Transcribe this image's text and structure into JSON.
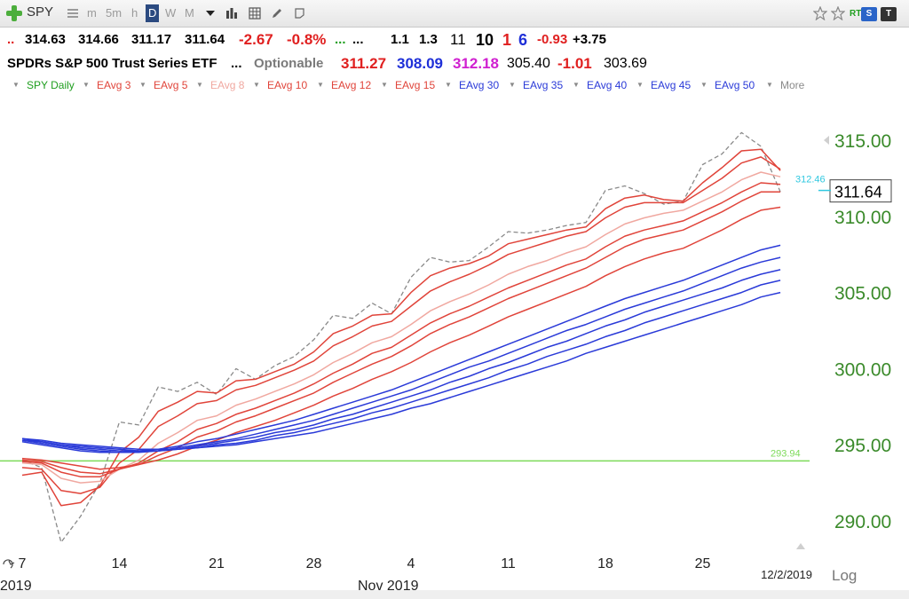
{
  "toolbar": {
    "symbol": "SPY",
    "intervals": [
      "m",
      "5m",
      "h",
      "D",
      "W",
      "M"
    ],
    "active_interval": "D",
    "icons": [
      "add-symbol-icon",
      "list-icon",
      "dropdown-icon",
      "bar-chart-icon",
      "grid-icon",
      "pen-icon",
      "note-icon",
      "star-icon",
      "star-outline-icon",
      "rt-badge-icon",
      "s-badge-icon",
      "t-badge-icon"
    ],
    "rt_label": "RT",
    "s_label": "S",
    "t_label": "T"
  },
  "quote": {
    "dots1": "..",
    "open": "314.63",
    "high": "314.66",
    "low": "311.17",
    "close": "311.64",
    "change": "-2.67",
    "change_pct": "-0.8%",
    "dots_green": "...",
    "dots_black": "...",
    "v1": "1.1",
    "v2": "1.3",
    "v3": "11",
    "v4": "10",
    "v5": "1",
    "v6": "6",
    "v7": "-0.93",
    "v8": "+3.75"
  },
  "quote2": {
    "name": "SPDRs S&P 500 Trust Series ETF",
    "dots": "...",
    "optionable": "Optionable",
    "p1": "311.27",
    "p2": "308.09",
    "p3": "312.18",
    "p4": "305.40",
    "p5": "-1.01",
    "p6": "303.69"
  },
  "legend": {
    "items": [
      "SPY Daily",
      "EAvg 3",
      "EAvg 5",
      "EAvg 8",
      "EAvg 10",
      "EAvg 12",
      "EAvg 15",
      "EAvg 30",
      "EAvg 35",
      "EAvg 40",
      "EAvg 45",
      "EAvg 50"
    ],
    "more": "More"
  },
  "colors": {
    "price": "#8a8a8a",
    "short_ema": "#e0443a",
    "ema8": "#f0a8a0",
    "long_ema": "#2a3ad8",
    "hline": "#7ddb5a",
    "axis_text": "#3a8a2a",
    "marker": "#30c8e0"
  },
  "chart_data": {
    "type": "line",
    "ylim": [
      288,
      316
    ],
    "yticks": [
      "290.00",
      "295.00",
      "300.00",
      "305.00",
      "310.00",
      "315.00"
    ],
    "x_ticks": [
      "7",
      "14",
      "21",
      "28",
      "4",
      "11",
      "18",
      "25"
    ],
    "x_tick_index": [
      0,
      5,
      10,
      15,
      20,
      25,
      30,
      35
    ],
    "month_labels": [
      "2019",
      "Nov 2019"
    ],
    "date_label": "12/2/2019",
    "scale_label": "Log",
    "last_price_label": "311.64",
    "marker_label": "312.46",
    "marker_value": 312.46,
    "hline_value": 293.94,
    "hline_label": "293.94",
    "series": [
      {
        "name": "SPY Daily",
        "style": "price",
        "values": [
          294.0,
          293.5,
          288.6,
          290.3,
          292.5,
          296.5,
          296.3,
          298.8,
          298.5,
          299.1,
          298.3,
          300.0,
          299.3,
          300.2,
          300.8,
          301.9,
          303.5,
          303.3,
          304.3,
          303.6,
          306.0,
          307.3,
          307.0,
          307.1,
          308.0,
          309.0,
          308.9,
          309.1,
          309.4,
          309.6,
          311.7,
          312.0,
          311.5,
          310.8,
          311.0,
          313.4,
          314.1,
          315.5,
          314.6,
          311.6
        ]
      },
      {
        "name": "EAvg 3",
        "style": "short",
        "values": [
          293.0,
          293.2,
          291.0,
          291.2,
          292.3,
          294.5,
          295.5,
          297.2,
          297.8,
          298.5,
          298.4,
          299.2,
          299.3,
          299.8,
          300.3,
          301.1,
          302.3,
          302.8,
          303.5,
          303.6,
          305.0,
          306.1,
          306.6,
          306.9,
          307.4,
          308.2,
          308.5,
          308.8,
          309.1,
          309.3,
          310.5,
          311.2,
          311.4,
          311.1,
          311.0,
          312.2,
          313.2,
          314.3,
          314.4,
          313.0
        ]
      },
      {
        "name": "EAvg 5",
        "style": "short",
        "values": [
          293.5,
          293.4,
          292.0,
          291.8,
          292.2,
          293.8,
          294.7,
          296.2,
          296.9,
          297.7,
          297.9,
          298.6,
          298.9,
          299.4,
          299.9,
          300.5,
          301.5,
          302.1,
          302.8,
          303.1,
          304.1,
          305.1,
          305.7,
          306.2,
          306.8,
          307.5,
          307.9,
          308.3,
          308.7,
          309.0,
          309.9,
          310.6,
          310.9,
          310.9,
          310.9,
          311.7,
          312.5,
          313.5,
          313.9,
          313.1
        ]
      },
      {
        "name": "EAvg 8",
        "style": "ema8",
        "values": [
          293.8,
          293.7,
          292.8,
          292.5,
          292.6,
          293.4,
          294.0,
          295.1,
          295.8,
          296.6,
          296.9,
          297.6,
          298.0,
          298.5,
          299.0,
          299.6,
          300.4,
          301.0,
          301.7,
          302.1,
          302.9,
          303.8,
          304.4,
          304.9,
          305.5,
          306.2,
          306.7,
          307.1,
          307.6,
          308.0,
          308.8,
          309.5,
          309.9,
          310.2,
          310.4,
          311.0,
          311.6,
          312.4,
          312.9,
          312.6
        ]
      },
      {
        "name": "EAvg 10",
        "style": "short",
        "values": [
          293.9,
          293.8,
          293.2,
          292.9,
          292.9,
          293.4,
          293.8,
          294.6,
          295.2,
          296.0,
          296.4,
          297.0,
          297.4,
          297.9,
          298.4,
          299.0,
          299.7,
          300.3,
          301.0,
          301.4,
          302.2,
          303.0,
          303.6,
          304.1,
          304.7,
          305.3,
          305.8,
          306.3,
          306.8,
          307.2,
          308.0,
          308.7,
          309.1,
          309.4,
          309.7,
          310.3,
          310.9,
          311.6,
          312.2,
          312.1
        ]
      },
      {
        "name": "EAvg 12",
        "style": "short",
        "values": [
          294.0,
          293.9,
          293.5,
          293.2,
          293.1,
          293.4,
          293.7,
          294.3,
          294.8,
          295.5,
          295.9,
          296.5,
          296.9,
          297.4,
          297.9,
          298.4,
          299.1,
          299.7,
          300.3,
          300.8,
          301.5,
          302.3,
          302.9,
          303.4,
          304.0,
          304.6,
          305.1,
          305.6,
          306.1,
          306.6,
          307.3,
          308.0,
          308.5,
          308.8,
          309.1,
          309.7,
          310.3,
          311.0,
          311.6,
          311.6
        ]
      },
      {
        "name": "EAvg 15",
        "style": "short",
        "values": [
          294.1,
          294.0,
          293.8,
          293.6,
          293.4,
          293.5,
          293.7,
          294.0,
          294.4,
          294.9,
          295.3,
          295.8,
          296.2,
          296.6,
          297.1,
          297.6,
          298.2,
          298.7,
          299.3,
          299.8,
          300.4,
          301.1,
          301.7,
          302.2,
          302.8,
          303.4,
          303.9,
          304.4,
          304.9,
          305.4,
          306.1,
          306.7,
          307.2,
          307.6,
          307.9,
          308.5,
          309.1,
          309.8,
          310.4,
          310.6
        ]
      },
      {
        "name": "EAvg 30",
        "style": "long",
        "values": [
          295.2,
          295.0,
          294.8,
          294.6,
          294.5,
          294.5,
          294.6,
          294.7,
          294.9,
          295.2,
          295.4,
          295.7,
          296.0,
          296.3,
          296.6,
          297.0,
          297.4,
          297.8,
          298.2,
          298.6,
          299.1,
          299.6,
          300.1,
          300.6,
          301.1,
          301.6,
          302.1,
          302.6,
          303.1,
          303.6,
          304.1,
          304.6,
          305.0,
          305.4,
          305.8,
          306.3,
          306.8,
          307.3,
          307.8,
          308.1
        ]
      },
      {
        "name": "EAvg 35",
        "style": "long",
        "values": [
          295.3,
          295.1,
          294.9,
          294.7,
          294.6,
          294.5,
          294.5,
          294.6,
          294.8,
          295.0,
          295.2,
          295.4,
          295.7,
          296.0,
          296.3,
          296.6,
          297.0,
          297.4,
          297.8,
          298.2,
          298.6,
          299.1,
          299.6,
          300.1,
          300.5,
          301.0,
          301.5,
          302.0,
          302.5,
          302.9,
          303.4,
          303.9,
          304.3,
          304.7,
          305.1,
          305.6,
          306.1,
          306.6,
          307.0,
          307.3
        ]
      },
      {
        "name": "EAvg 40",
        "style": "long",
        "values": [
          295.3,
          295.2,
          295.0,
          294.8,
          294.7,
          294.6,
          294.6,
          294.6,
          294.7,
          294.9,
          295.1,
          295.3,
          295.5,
          295.8,
          296.0,
          296.3,
          296.7,
          297.0,
          297.4,
          297.8,
          298.2,
          298.6,
          299.1,
          299.5,
          300.0,
          300.4,
          300.9,
          301.4,
          301.8,
          302.3,
          302.8,
          303.2,
          303.7,
          304.1,
          304.5,
          304.9,
          305.3,
          305.8,
          306.2,
          306.5
        ]
      },
      {
        "name": "EAvg 45",
        "style": "long",
        "values": [
          295.4,
          295.2,
          295.0,
          294.9,
          294.8,
          294.7,
          294.6,
          294.6,
          294.7,
          294.8,
          295.0,
          295.1,
          295.3,
          295.6,
          295.8,
          296.1,
          296.4,
          296.7,
          297.1,
          297.4,
          297.8,
          298.2,
          298.6,
          299.0,
          299.4,
          299.9,
          300.3,
          300.8,
          301.2,
          301.6,
          302.1,
          302.5,
          303.0,
          303.4,
          303.8,
          304.2,
          304.6,
          305.0,
          305.5,
          305.8
        ]
      },
      {
        "name": "EAvg 50",
        "style": "long",
        "values": [
          295.4,
          295.3,
          295.1,
          295.0,
          294.9,
          294.8,
          294.7,
          294.7,
          294.7,
          294.8,
          294.9,
          295.0,
          295.2,
          295.4,
          295.6,
          295.8,
          296.1,
          296.4,
          296.7,
          297.0,
          297.4,
          297.7,
          298.1,
          298.5,
          298.9,
          299.3,
          299.7,
          300.1,
          300.5,
          301.0,
          301.4,
          301.8,
          302.2,
          302.6,
          303.0,
          303.4,
          303.8,
          304.2,
          304.7,
          305.0
        ]
      }
    ]
  }
}
